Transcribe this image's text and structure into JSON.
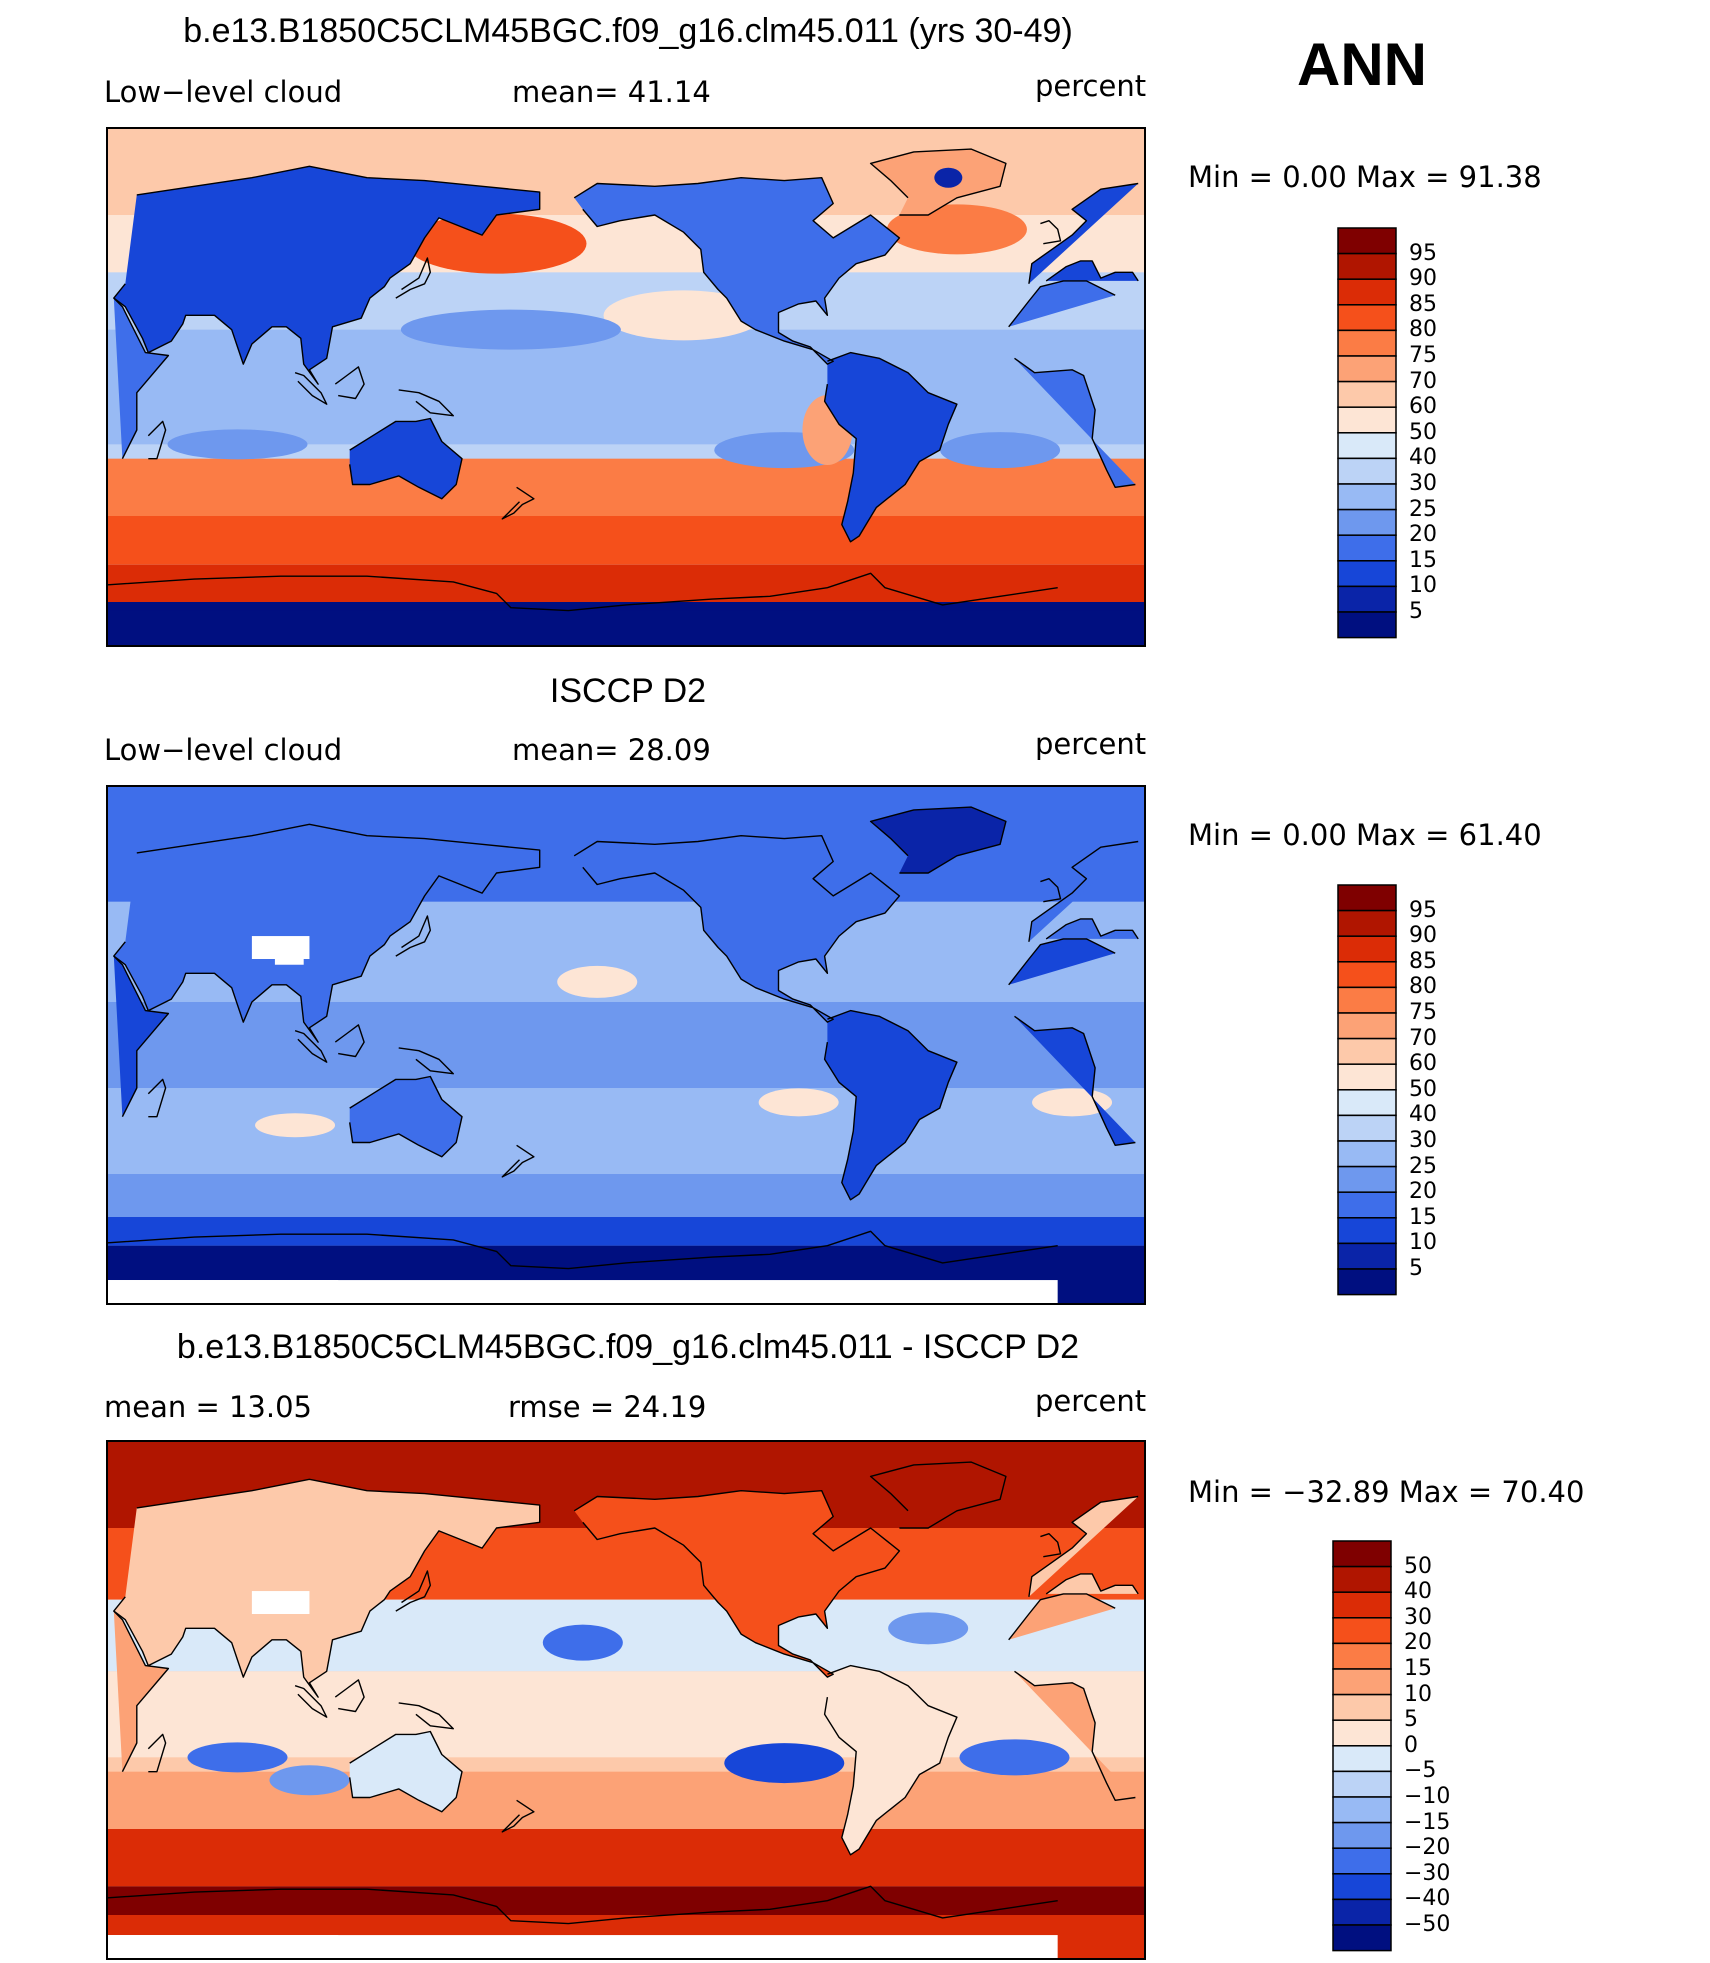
{
  "header": {
    "season": "ANN"
  },
  "panels": [
    {
      "id": "model",
      "title": "b.e13.B1850C5CLM45BGC.f09_g16.clm45.011 (yrs 30-49)",
      "left_text": "Low−level cloud",
      "center_text": "mean=  41.14",
      "units": "percent",
      "minmax": "Min =    0.00 Max =   91.38",
      "field": "model",
      "colorbar": {
        "labels": [
          "95",
          "90",
          "85",
          "80",
          "75",
          "70",
          "60",
          "50",
          "40",
          "30",
          "25",
          "20",
          "15",
          "10",
          "5"
        ],
        "colors": [
          "#7f0000",
          "#b01500",
          "#db2c06",
          "#f5501b",
          "#fb7c45",
          "#fca276",
          "#fdc9aa",
          "#fde5d5",
          "#d9e9f9",
          "#bcd3f6",
          "#98baf4",
          "#6e98ee",
          "#3e6eea",
          "#1746d8",
          "#0a24a8",
          "#000f80"
        ]
      }
    },
    {
      "id": "obs",
      "title": "ISCCP D2",
      "left_text": "Low−level cloud",
      "center_text": "mean=  28.09",
      "units": "percent",
      "minmax": "Min =    0.00 Max =   61.40",
      "field": "obs",
      "colorbar": {
        "labels": [
          "95",
          "90",
          "85",
          "80",
          "75",
          "70",
          "60",
          "50",
          "40",
          "30",
          "25",
          "20",
          "15",
          "10",
          "5"
        ],
        "colors": [
          "#7f0000",
          "#b01500",
          "#db2c06",
          "#f5501b",
          "#fb7c45",
          "#fca276",
          "#fdc9aa",
          "#fde5d5",
          "#d9e9f9",
          "#bcd3f6",
          "#98baf4",
          "#6e98ee",
          "#3e6eea",
          "#1746d8",
          "#0a24a8",
          "#000f80"
        ]
      }
    },
    {
      "id": "diff",
      "title": "b.e13.B1850C5CLM45BGC.f09_g16.clm45.011 - ISCCP D2",
      "left_text": "mean =    13.05",
      "center_text": "rmse =    24.19",
      "units": "percent",
      "minmax": "Min = −32.89 Max =   70.40",
      "field": "diff",
      "colorbar": {
        "labels": [
          "50",
          "40",
          "30",
          "20",
          "15",
          "10",
          "5",
          "0",
          "−5",
          "−10",
          "−15",
          "−20",
          "−30",
          "−40",
          "−50"
        ],
        "colors": [
          "#7f0000",
          "#b01500",
          "#db2c06",
          "#f5501b",
          "#fb7c45",
          "#fca276",
          "#fdc9aa",
          "#fde5d5",
          "#d9e9f9",
          "#bcd3f6",
          "#98baf4",
          "#6e98ee",
          "#3e6eea",
          "#1746d8",
          "#0a24a8",
          "#000f80"
        ]
      }
    }
  ]
}
